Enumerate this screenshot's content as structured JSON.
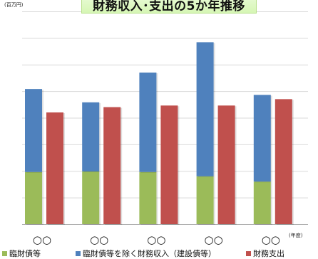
{
  "chart_data": {
    "type": "bar",
    "title": "財務収入･支出の5か年推移",
    "unit_label": "(百万円)",
    "x_unit_label": "(年度)",
    "categories": [
      "○○",
      "○○",
      "○○",
      "○○",
      "○○"
    ],
    "groups": [
      {
        "stack": [
          "臨財債等",
          "臨財債等を除く財務収入（建設債等）"
        ]
      },
      {
        "stack": [
          "財務支出"
        ]
      }
    ],
    "series": [
      {
        "name": "臨財債等",
        "color": "#9bbb59",
        "values": [
          98,
          99,
          98,
          90,
          80
        ]
      },
      {
        "name": "臨財債等を除く財務収入（建設債等）",
        "color": "#4f81bd",
        "values": [
          156,
          130,
          187,
          252,
          163
        ]
      },
      {
        "name": "財務支出",
        "color": "#c0504d",
        "values": [
          210,
          220,
          223,
          223,
          235
        ]
      }
    ],
    "ylim": [
      0,
      400
    ],
    "y_gridline_step": 50,
    "grid": true,
    "legend_position": "bottom"
  }
}
